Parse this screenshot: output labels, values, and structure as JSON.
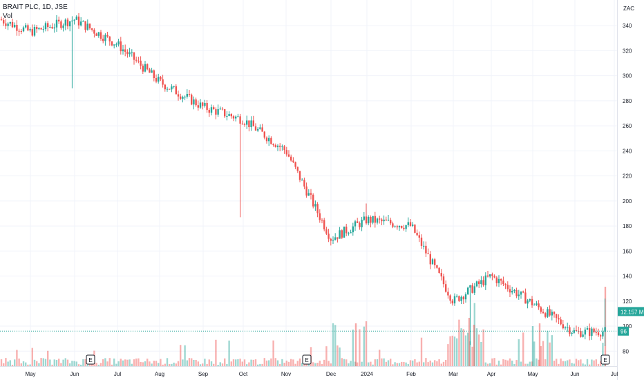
{
  "legend": {
    "title": "BRAIT PLC, 1D, JSE",
    "volume_label": "Vol"
  },
  "currency": "ZAC",
  "earnings_marker": "E",
  "colors": {
    "up": "#26a69a",
    "down": "#ef5350",
    "up_volume": "#26a69a",
    "down_volume": "#ef5350",
    "grid": "#f0f3fa",
    "axis_border": "#e0e3eb",
    "text": "#131722"
  },
  "chart_data": {
    "type": "candlestick",
    "title": "BRAIT PLC, 1D, JSE",
    "y_axis_unit": "ZAC",
    "y_ticks": [
      80,
      100,
      120,
      140,
      160,
      180,
      200,
      220,
      240,
      260,
      280,
      300,
      320,
      340
    ],
    "x_ticks": [
      "May",
      "Jun",
      "Jul",
      "Aug",
      "Sep",
      "Oct",
      "Nov",
      "Dec",
      "2024",
      "Feb",
      "Mar",
      "Apr",
      "May",
      "Jun",
      "Jul"
    ],
    "ylim": [
      68,
      355
    ],
    "grid": true,
    "last_volume_label": "12.157 M",
    "last_price_label": "96",
    "earnings_markers": [
      "Jun",
      "Nov",
      "Jun"
    ],
    "price_path": [
      [
        "Apr",
        345
      ],
      [
        "May",
        335
      ],
      [
        "Jun",
        345
      ],
      [
        "Jul",
        325
      ],
      [
        "Aug",
        295
      ],
      [
        "Sep",
        275
      ],
      [
        "Oct",
        265
      ],
      [
        "Nov",
        240
      ],
      [
        "Dec",
        170
      ],
      [
        "2024",
        185
      ],
      [
        "Feb",
        180
      ],
      [
        "Mar",
        120
      ],
      [
        "Apr",
        140
      ],
      [
        "May",
        118
      ],
      [
        "Jun",
        95
      ],
      [
        "Jul",
        96
      ]
    ]
  }
}
